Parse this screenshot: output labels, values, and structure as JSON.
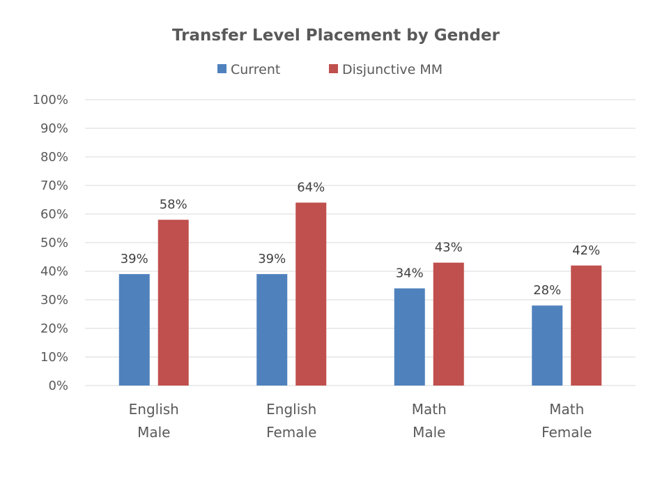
{
  "chart_data": {
    "type": "bar",
    "title": "Transfer Level Placement by Gender",
    "categories": [
      [
        "English",
        "Male"
      ],
      [
        "English",
        "Female"
      ],
      [
        "Math",
        "Male"
      ],
      [
        "Math",
        "Female"
      ]
    ],
    "series": [
      {
        "name": "Current",
        "color": "#4f81bd",
        "values": [
          39,
          39,
          34,
          28
        ],
        "labels": [
          "39%",
          "39%",
          "34%",
          "28%"
        ]
      },
      {
        "name": "Disjunctive MM",
        "color": "#c0504d",
        "values": [
          58,
          64,
          43,
          42
        ],
        "labels": [
          "58%",
          "64%",
          "43%",
          "42%"
        ]
      }
    ],
    "ylim": [
      0,
      100
    ],
    "yticks": [
      0,
      10,
      20,
      30,
      40,
      50,
      60,
      70,
      80,
      90,
      100
    ],
    "ytick_labels": [
      "0%",
      "10%",
      "20%",
      "30%",
      "40%",
      "50%",
      "60%",
      "70%",
      "80%",
      "90%",
      "100%"
    ],
    "grid": true,
    "legend_position": "top"
  }
}
